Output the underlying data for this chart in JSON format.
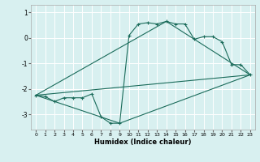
{
  "title": "",
  "xlabel": "Humidex (Indice chaleur)",
  "bg_color": "#d8f0f0",
  "grid_color": "#ffffff",
  "line_color": "#1a6b5a",
  "xlim": [
    -0.5,
    23.5
  ],
  "ylim": [
    -3.6,
    1.3
  ],
  "xticks": [
    0,
    1,
    2,
    3,
    4,
    5,
    6,
    7,
    8,
    9,
    10,
    11,
    12,
    13,
    14,
    15,
    16,
    17,
    18,
    19,
    20,
    21,
    22,
    23
  ],
  "yticks": [
    -3,
    -2,
    -1,
    0,
    1
  ],
  "curve1_x": [
    0,
    1,
    2,
    3,
    4,
    5,
    6,
    7,
    8,
    9,
    10,
    11,
    12,
    13,
    14,
    15,
    16,
    17,
    18,
    19,
    20,
    21,
    22,
    23
  ],
  "curve1_y": [
    -2.25,
    -2.3,
    -2.5,
    -2.35,
    -2.35,
    -2.35,
    -2.2,
    -3.1,
    -3.35,
    -3.35,
    0.1,
    0.55,
    0.6,
    0.55,
    0.65,
    0.55,
    0.55,
    -0.05,
    0.05,
    0.05,
    -0.15,
    -1.05,
    -1.05,
    -1.45
  ],
  "line1_x": [
    0,
    23
  ],
  "line1_y": [
    -2.25,
    -1.45
  ],
  "line2_x": [
    0,
    9,
    23
  ],
  "line2_y": [
    -2.25,
    -3.35,
    -1.45
  ],
  "line3_x": [
    0,
    14,
    23
  ],
  "line3_y": [
    -2.25,
    0.65,
    -1.45
  ]
}
